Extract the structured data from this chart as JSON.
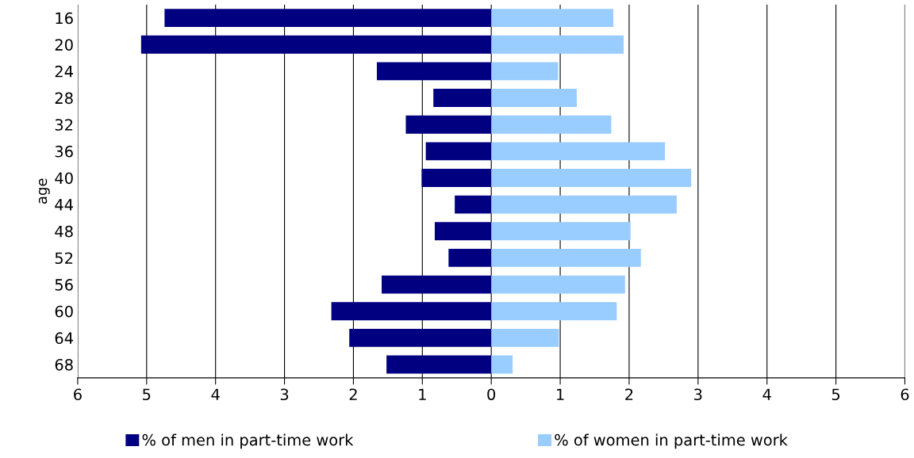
{
  "chart_data": {
    "type": "bar",
    "orientation": "horizontal",
    "stacked": true,
    "ylabel": "age",
    "categories": [
      "16",
      "20",
      "24",
      "28",
      "32",
      "36",
      "40",
      "44",
      "48",
      "52",
      "56",
      "60",
      "64",
      "68"
    ],
    "series": [
      {
        "name": "% of men in part-time work",
        "color": "#000080",
        "values": [
          -4.74,
          -5.08,
          -1.66,
          -0.84,
          -1.24,
          -0.95,
          -1.01,
          -0.53,
          -0.82,
          -0.62,
          -1.59,
          -2.32,
          -2.06,
          -1.52
        ]
      },
      {
        "name": "% of women in part-time work",
        "color": "#99ccff",
        "values": [
          1.77,
          1.92,
          0.97,
          1.24,
          1.74,
          2.52,
          2.9,
          2.69,
          2.02,
          2.17,
          1.94,
          1.82,
          0.98,
          0.31
        ]
      }
    ],
    "xlim": [
      -6,
      6
    ],
    "xticks": [
      {
        "value": -6,
        "label": "6"
      },
      {
        "value": -5,
        "label": "5"
      },
      {
        "value": -4,
        "label": "4"
      },
      {
        "value": -3,
        "label": "3"
      },
      {
        "value": -2,
        "label": "2"
      },
      {
        "value": -1,
        "label": "1"
      },
      0,
      1,
      2,
      3,
      4,
      5,
      6
    ],
    "grid": "x",
    "legend": "bottom"
  }
}
